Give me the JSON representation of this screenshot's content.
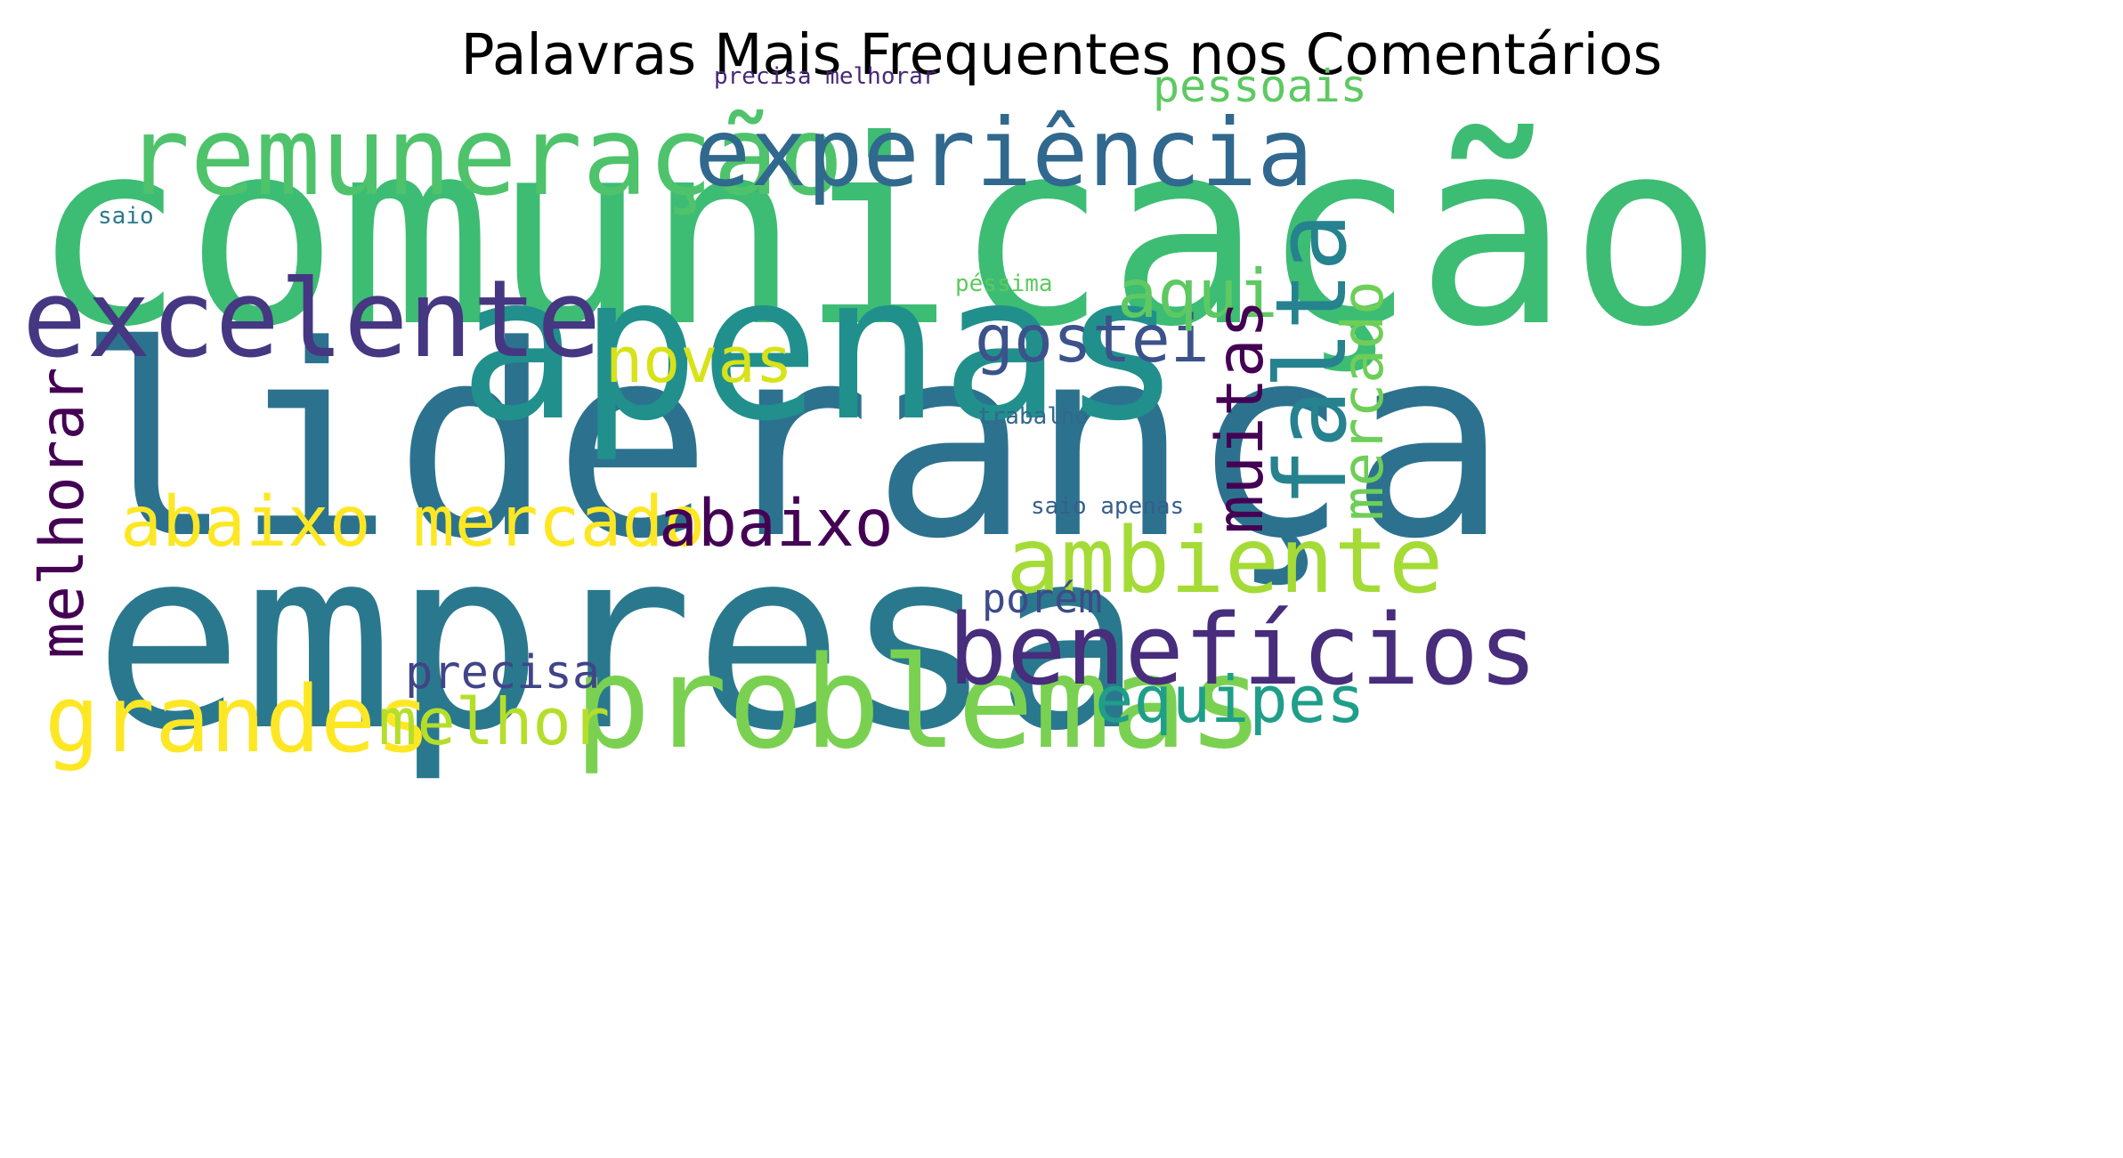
{
  "title": "Palavras Mais Frequentes nos Comentários",
  "words": [
    {
      "text": "comunicação",
      "color": "#3dbc74"
    },
    {
      "text": "liderança",
      "color": "#2c728e"
    },
    {
      "text": "empresa",
      "color": "#2a788e"
    },
    {
      "text": "apenas",
      "color": "#21908d"
    },
    {
      "text": "remuneração",
      "color": "#4ec36b"
    },
    {
      "text": "experiência",
      "color": "#31688e"
    },
    {
      "text": "excelente",
      "color": "#453781"
    },
    {
      "text": "problemas",
      "color": "#7ad151"
    },
    {
      "text": "benefícios",
      "color": "#472d7b"
    },
    {
      "text": "ambiente",
      "color": "#a5db36"
    },
    {
      "text": "grandes",
      "color": "#fde725"
    },
    {
      "text": "abaixo mercado",
      "color": "#fde725"
    },
    {
      "text": "gostei",
      "color": "#3b528b"
    },
    {
      "text": "aqui",
      "color": "#5ec962"
    },
    {
      "text": "novas",
      "color": "#d8e219"
    },
    {
      "text": "abaixo",
      "color": "#440154"
    },
    {
      "text": "equipes",
      "color": "#1f9e89"
    },
    {
      "text": "melhor",
      "color": "#b5de2b"
    },
    {
      "text": "precisa",
      "color": "#414487"
    },
    {
      "text": "porém",
      "color": "#3e4a89"
    },
    {
      "text": "pessoais",
      "color": "#5ec962"
    },
    {
      "text": "melhorar",
      "color": "#440154"
    },
    {
      "text": "muitas",
      "color": "#440154"
    },
    {
      "text": "falta",
      "color": "#26828e"
    },
    {
      "text": "mercado",
      "color": "#6ece58"
    },
    {
      "text": "precisa melhorar",
      "color": "#482878"
    },
    {
      "text": "saio",
      "color": "#2a788e"
    },
    {
      "text": "péssima",
      "color": "#5ec962"
    },
    {
      "text": "trabalho",
      "color": "#31688e"
    },
    {
      "text": "saio apenas",
      "color": "#355f8d"
    }
  ]
}
